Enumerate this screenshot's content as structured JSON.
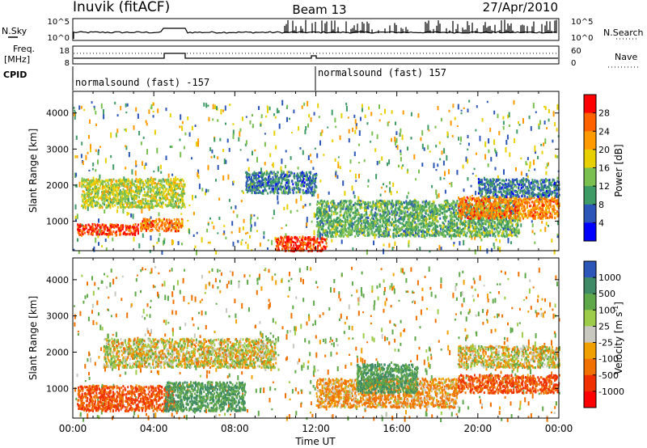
{
  "header": {
    "station": "Inuvik (fitACF)",
    "beam": "Beam 13",
    "date": "27/Apr/2010"
  },
  "noise_panel": {
    "left_label": "N.Sky",
    "right_label": "N.Search",
    "left_ticks": [
      "10^5",
      "10^0"
    ],
    "right_ticks": [
      "10^5",
      "10^0"
    ]
  },
  "freq_panel": {
    "left_label_1": "Freq.",
    "left_label_2": "[MHz]",
    "right_label": "Nave",
    "left_ticks": [
      "18",
      "8"
    ],
    "right_ticks": [
      "60",
      "0"
    ]
  },
  "cpid": {
    "label": "CPID",
    "segments": [
      {
        "text": "normalsound (fast) -157"
      },
      {
        "text": "normalsound (fast) 157"
      }
    ]
  },
  "chart_data": [
    {
      "type": "heatmap",
      "ylabel": "Slant Range [km]",
      "ylim": [
        180,
        4600
      ],
      "yticks": [
        "1000",
        "2000",
        "3000",
        "4000"
      ],
      "xlim": [
        0,
        24
      ],
      "colorbar": {
        "label": "Power [dB]",
        "ticks": [
          "28",
          "24",
          "20",
          "16",
          "12",
          "8",
          "4"
        ],
        "colors": [
          "#ff0000",
          "#ff6000",
          "#ff9a00",
          "#e8d000",
          "#7ac050",
          "#3f9b66",
          "#2c56b8",
          "#0000ff"
        ]
      },
      "features": [
        {
          "t": [
            0.2,
            3.2
          ],
          "range": [
            650,
            950
          ],
          "level": 28
        },
        {
          "t": [
            3.3,
            5.4
          ],
          "range": [
            750,
            1100
          ],
          "level": 24
        },
        {
          "t": [
            0.4,
            5.5
          ],
          "range": [
            1400,
            2200
          ],
          "level": 16
        },
        {
          "t": [
            8.5,
            12.0
          ],
          "range": [
            1800,
            2400
          ],
          "level": 8
        },
        {
          "t": [
            10.0,
            12.5
          ],
          "range": [
            200,
            600
          ],
          "level": 28
        },
        {
          "t": [
            12.0,
            22.0
          ],
          "range": [
            600,
            1600
          ],
          "level": 12
        },
        {
          "t": [
            19.0,
            24.0
          ],
          "range": [
            1100,
            1700
          ],
          "level": 24
        },
        {
          "t": [
            20.0,
            24.0
          ],
          "range": [
            1700,
            2200
          ],
          "level": 8
        }
      ]
    },
    {
      "type": "heatmap",
      "ylabel": "Slant Range [km]",
      "ylim": [
        180,
        4600
      ],
      "yticks": [
        "1000",
        "2000",
        "3000",
        "4000"
      ],
      "xlim": [
        0,
        24
      ],
      "xlabel": "Time UT",
      "xticks": [
        "00:00",
        "04:00",
        "08:00",
        "12:00",
        "16:00",
        "20:00",
        "00:00"
      ],
      "colorbar": {
        "label": "Velocity [m s^-1]",
        "ticks": [
          "1000",
          "500",
          "100",
          "25",
          "-25",
          "-100",
          "-500",
          "-1000"
        ],
        "colors": [
          "#2c56b8",
          "#3f8a66",
          "#5fa84a",
          "#9ccc4a",
          "#c8c8c0",
          "#f0a000",
          "#f07000",
          "#f03000",
          "#ff0000"
        ]
      },
      "features": [
        {
          "t": [
            0.2,
            5.0
          ],
          "range": [
            400,
            1100
          ],
          "level": -500
        },
        {
          "t": [
            1.5,
            10.0
          ],
          "range": [
            1600,
            2400
          ],
          "level": 0
        },
        {
          "t": [
            4.5,
            8.5
          ],
          "range": [
            400,
            1200
          ],
          "level": 500
        },
        {
          "t": [
            12.0,
            19.0
          ],
          "range": [
            500,
            1300
          ],
          "level": -100
        },
        {
          "t": [
            14.0,
            17.0
          ],
          "range": [
            900,
            1700
          ],
          "level": 500
        },
        {
          "t": [
            19.0,
            24.0
          ],
          "range": [
            900,
            1400
          ],
          "level": -500
        },
        {
          "t": [
            19.0,
            24.0
          ],
          "range": [
            1600,
            2200
          ],
          "level": 0
        }
      ]
    }
  ]
}
